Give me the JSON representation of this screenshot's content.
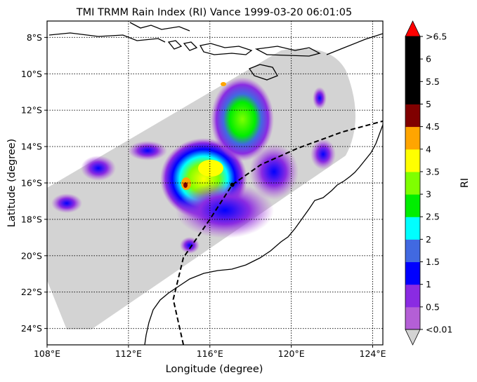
{
  "title": "TMI TRMM Rain Index (RI) Vance 1999-03-20 06:01:05",
  "xlabel": "Longitude (degree)",
  "ylabel": "Latitude (degree)",
  "x_ticks": [
    "108°E",
    "112°E",
    "116°E",
    "120°E",
    "124°E"
  ],
  "y_ticks": [
    "8°S",
    "10°S",
    "12°S",
    "14°S",
    "16°S",
    "18°S",
    "20°S",
    "22°S",
    "24°S"
  ],
  "colorbar": {
    "label": "RI",
    "tick_labels": [
      "<0.01",
      "0.5",
      "1",
      "1.5",
      "2",
      "2.5",
      "3",
      "3.5",
      "4",
      "4.5",
      "5",
      "5.5",
      "6",
      ">6.5"
    ],
    "colors": [
      "#b45fd6",
      "#8a2be2",
      "#0000ff",
      "#4169e1",
      "#00ffff",
      "#00ee00",
      "#7fff00",
      "#ffff00",
      "#ffa500",
      "#800000",
      "#000000",
      "#000000",
      "#000000"
    ],
    "under_color": "#d3d3d3",
    "over_color": "#ff0000"
  },
  "chart_data": {
    "type": "heatmap",
    "title": "TMI TRMM Rain Index (RI) Vance 1999-03-20 06:01:05",
    "xlabel": "Longitude (degree)",
    "ylabel": "Latitude (degree)",
    "xlim": [
      108,
      124.5
    ],
    "ylim": [
      -24.9,
      -7.1
    ],
    "grid": true,
    "colorbar_range": [
      0.01,
      6.5
    ],
    "storm_track_lonlat": [
      [
        114.7,
        -24.9
      ],
      [
        114.2,
        -22.4
      ],
      [
        114.7,
        -20.1
      ],
      [
        116.0,
        -18.0
      ],
      [
        117.1,
        -16.1
      ],
      [
        118.5,
        -15.0
      ],
      [
        120.3,
        -14.1
      ],
      [
        122.5,
        -13.2
      ],
      [
        124.5,
        -12.6
      ]
    ]
  }
}
